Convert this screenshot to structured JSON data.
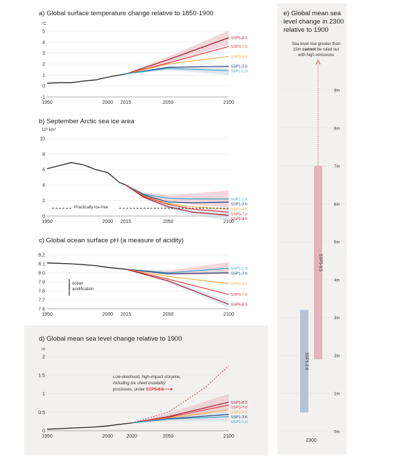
{
  "colors": {
    "ssp585": "#a11d2e",
    "ssp370": "#e03a3e",
    "ssp245": "#f0a84a",
    "ssp126": "#1f3d7a",
    "ssp119": "#3aa3c9",
    "hist": "#222222",
    "band_red": "#e8b7c0",
    "band_blue": "#d0d8e4",
    "panel_bg": "#f2f1f0"
  },
  "panels": {
    "a": {
      "title": "a) Global surface temperature change relative to 1850-1900",
      "unit": "°C"
    },
    "b": {
      "title": "b) September Arctic sea ice area",
      "unit": "10⁶ km²",
      "annotation": "Practically ice-free"
    },
    "c": {
      "title": "c) Global ocean surface pH (a measure of acidity)",
      "annotation_line1": "ocean",
      "annotation_line2": "acidification"
    },
    "d": {
      "title": "d) Global mean sea level change relative to 1900",
      "unit": "m",
      "annotation_lines": [
        "Low-likelihood, high-impact storyline,",
        "including ice sheet instability",
        "processes, under "
      ],
      "annotation_ssp": "SSP5-8.5"
    },
    "e": {
      "title_lines": [
        "e) Global mean sea",
        "level change in 2300",
        "relative to 1900"
      ],
      "note_line1": "Sea level rise greater than",
      "note_line2_pre": "15m ",
      "note_line2_bold": "cannot",
      "note_line2_post": " be ruled out",
      "note_line3": "with high emissions",
      "x_tick": "2300",
      "bar_labels": [
        "SSP1-2.6",
        "SSP5-8.5"
      ]
    }
  },
  "chart_data": [
    {
      "type": "line",
      "title": "a) Global surface temperature change relative to 1850-1900",
      "ylabel": "°C",
      "xlim": [
        1950,
        2100
      ],
      "ylim": [
        -1,
        5
      ],
      "x_ticks": [
        "1950",
        "2000",
        "2015",
        "2050",
        "2100"
      ],
      "y_ticks": [
        "-1",
        "0",
        "1",
        "2",
        "3",
        "4",
        "5"
      ],
      "historical": {
        "x": [
          1950,
          1960,
          1970,
          1980,
          1990,
          2000,
          2005,
          2010,
          2015
        ],
        "y": [
          0.25,
          0.3,
          0.3,
          0.45,
          0.55,
          0.8,
          0.9,
          1.0,
          1.1
        ]
      },
      "series": [
        {
          "name": "SSP5-8.5",
          "x": [
            2015,
            2050,
            2100
          ],
          "y": [
            1.1,
            2.4,
            4.4
          ]
        },
        {
          "name": "SSP3-7.0",
          "x": [
            2015,
            2050,
            2100
          ],
          "y": [
            1.1,
            2.1,
            3.6
          ]
        },
        {
          "name": "SSP2-4.5",
          "x": [
            2015,
            2050,
            2100
          ],
          "y": [
            1.1,
            2.0,
            2.7
          ]
        },
        {
          "name": "SSP1-2.6",
          "x": [
            2015,
            2050,
            2100
          ],
          "y": [
            1.1,
            1.7,
            1.8
          ]
        },
        {
          "name": "SSP1-1.9",
          "x": [
            2015,
            2050,
            2100
          ],
          "y": [
            1.1,
            1.6,
            1.4
          ]
        }
      ]
    },
    {
      "type": "line",
      "title": "b) September Arctic sea ice area",
      "ylabel": "10⁶ km²",
      "xlim": [
        1950,
        2100
      ],
      "ylim": [
        0,
        10
      ],
      "x_ticks": [
        "1950",
        "2000",
        "2015",
        "2050",
        "2100"
      ],
      "y_ticks": [
        "0",
        "2",
        "4",
        "6",
        "8",
        "10"
      ],
      "historical": {
        "x": [
          1950,
          1960,
          1970,
          1980,
          1990,
          2000,
          2010,
          2015
        ],
        "y": [
          6.1,
          6.5,
          6.9,
          6.6,
          6.0,
          5.6,
          4.3,
          4.0
        ]
      },
      "series": [
        {
          "name": "SSP1-1.9",
          "x": [
            2015,
            2030,
            2050,
            2070,
            2100
          ],
          "y": [
            4.0,
            2.8,
            2.3,
            2.2,
            2.2
          ]
        },
        {
          "name": "SSP1-2.6",
          "x": [
            2015,
            2030,
            2050,
            2070,
            2100
          ],
          "y": [
            4.0,
            2.7,
            1.8,
            1.7,
            1.8
          ]
        },
        {
          "name": "SSP2-4.5",
          "x": [
            2015,
            2030,
            2050,
            2070,
            2100
          ],
          "y": [
            4.0,
            2.6,
            1.6,
            1.2,
            0.9
          ]
        },
        {
          "name": "SSP3-7.0",
          "x": [
            2015,
            2030,
            2050,
            2070,
            2100
          ],
          "y": [
            4.0,
            2.5,
            1.5,
            0.9,
            0.5
          ]
        },
        {
          "name": "SSP5-8.5",
          "x": [
            2015,
            2030,
            2050,
            2070,
            2100
          ],
          "y": [
            4.0,
            2.4,
            1.2,
            0.5,
            0.1
          ]
        }
      ],
      "threshold": 1.0
    },
    {
      "type": "line",
      "title": "c) Global ocean surface pH (a measure of acidity)",
      "xlim": [
        1950,
        2100
      ],
      "ylim": [
        7.6,
        8.2
      ],
      "x_ticks": [
        "1950",
        "2000",
        "2015",
        "2050",
        "2100"
      ],
      "y_ticks": [
        "7.6",
        "7.7",
        "7.8",
        "7.9",
        "8.0",
        "8.1",
        "8.2"
      ],
      "historical": {
        "x": [
          1950,
          1970,
          1990,
          2000,
          2015
        ],
        "y": [
          8.11,
          8.1,
          8.08,
          8.06,
          8.04
        ]
      },
      "series": [
        {
          "name": "SSP1-1.9",
          "x": [
            2015,
            2050,
            2100
          ],
          "y": [
            8.04,
            8.0,
            8.05
          ]
        },
        {
          "name": "SSP1-2.6",
          "x": [
            2015,
            2050,
            2100
          ],
          "y": [
            8.04,
            7.99,
            8.0
          ]
        },
        {
          "name": "SSP2-4.5",
          "x": [
            2015,
            2050,
            2100
          ],
          "y": [
            8.04,
            7.96,
            7.88
          ]
        },
        {
          "name": "SSP3-7.0",
          "x": [
            2015,
            2050,
            2100
          ],
          "y": [
            8.04,
            7.93,
            7.76
          ]
        },
        {
          "name": "SSP5-8.5",
          "x": [
            2015,
            2050,
            2100
          ],
          "y": [
            8.04,
            7.91,
            7.65
          ]
        }
      ]
    },
    {
      "type": "line",
      "title": "d) Global mean sea level change relative to 1900",
      "ylabel": "m",
      "xlim": [
        1950,
        2100
      ],
      "ylim": [
        0,
        2
      ],
      "x_ticks": [
        "1950",
        "2000",
        "2020",
        "2050",
        "2100"
      ],
      "y_ticks": [
        "0",
        "0.5",
        "1",
        "1.5",
        "2"
      ],
      "historical": {
        "x": [
          1950,
          1970,
          1990,
          2000,
          2010,
          2020
        ],
        "y": [
          0.04,
          0.07,
          0.1,
          0.13,
          0.17,
          0.21
        ]
      },
      "series": [
        {
          "name": "SSP5-8.5",
          "x": [
            2020,
            2050,
            2100
          ],
          "y": [
            0.21,
            0.38,
            0.77
          ]
        },
        {
          "name": "SSP3-7.0",
          "x": [
            2020,
            2050,
            2100
          ],
          "y": [
            0.21,
            0.36,
            0.69
          ]
        },
        {
          "name": "SSP2-4.5",
          "x": [
            2020,
            2050,
            2100
          ],
          "y": [
            0.21,
            0.34,
            0.56
          ]
        },
        {
          "name": "SSP1-2.6",
          "x": [
            2020,
            2050,
            2100
          ],
          "y": [
            0.21,
            0.32,
            0.44
          ]
        },
        {
          "name": "SSP1-1.9",
          "x": [
            2020,
            2050,
            2100
          ],
          "y": [
            0.21,
            0.31,
            0.38
          ]
        }
      ],
      "storyline": {
        "x": [
          2020,
          2050,
          2080,
          2100
        ],
        "y": [
          0.21,
          0.5,
          1.15,
          1.75
        ]
      }
    },
    {
      "type": "bar",
      "title": "e) Global mean sea level change in 2300 relative to 1900",
      "ylim": [
        0,
        9
      ],
      "y_ticks": [
        "0m",
        "1m",
        "2m",
        "3m",
        "4m",
        "5m",
        "6m",
        "7m",
        "8m",
        "9m"
      ],
      "bars": [
        {
          "name": "SSP1-2.6",
          "low": 0.5,
          "high": 3.2
        },
        {
          "name": "SSP5-8.5",
          "low": 1.9,
          "high": 7.0
        }
      ]
    }
  ]
}
